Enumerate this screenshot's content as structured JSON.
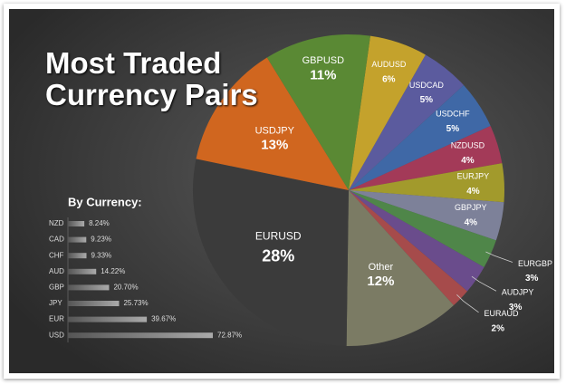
{
  "chart_data": [
    {
      "type": "pie",
      "title": "Most Traded Currency Pairs",
      "categories": [
        "AUDUSD",
        "USDCAD",
        "USDCHF",
        "NZDUSD",
        "EURJPY",
        "GBPJPY",
        "EURGBP",
        "AUDJPY",
        "EURAUD",
        "Other",
        "EURUSD",
        "USDJPY",
        "GBPUSD"
      ],
      "values": [
        6,
        5,
        5,
        4,
        4,
        4,
        3,
        3,
        2,
        12,
        28,
        13,
        11
      ],
      "value_labels": [
        "6%",
        "5%",
        "5%",
        "4%",
        "4%",
        "4%",
        "3%",
        "3%",
        "2%",
        "12%",
        "28%",
        "13%",
        "11%"
      ],
      "colors": [
        "#c4a22c",
        "#5b5b9e",
        "#3f68a6",
        "#a33a58",
        "#a29a2c",
        "#7d8199",
        "#4f8649",
        "#6a4c8c",
        "#a64b4b",
        "#7b7b64",
        "#3b3b3b",
        "#d0661f",
        "#5a8934"
      ]
    },
    {
      "type": "bar",
      "title": "By Currency:",
      "categories": [
        "NZD",
        "CAD",
        "CHF",
        "AUD",
        "GBP",
        "JPY",
        "EUR",
        "USD"
      ],
      "values": [
        8.24,
        9.23,
        9.33,
        14.22,
        20.7,
        25.73,
        39.67,
        72.87
      ],
      "value_labels": [
        "8.24%",
        "9.23%",
        "9.33%",
        "14.22%",
        "20.70%",
        "25.73%",
        "39.67%",
        "72.87%"
      ],
      "color": "#8a8a8a"
    }
  ]
}
